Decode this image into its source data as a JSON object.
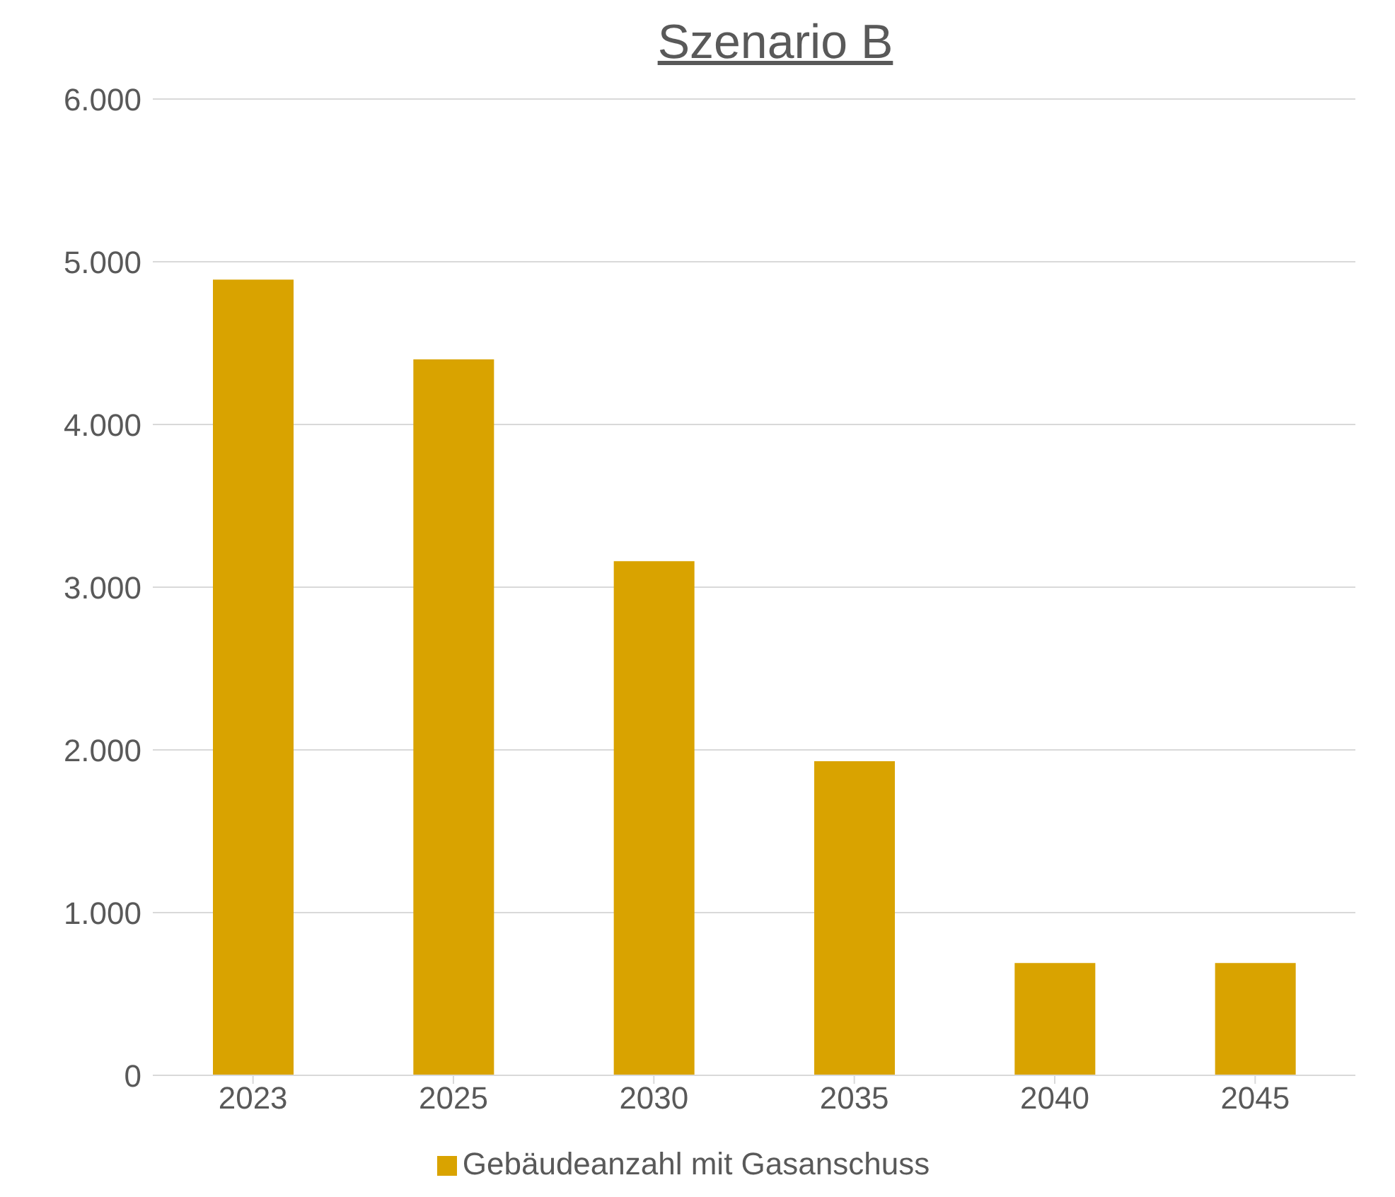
{
  "chart_data": {
    "type": "bar",
    "title": "Szenario B",
    "categories": [
      "2023",
      "2025",
      "2030",
      "2035",
      "2040",
      "2045"
    ],
    "series": [
      {
        "name": "Gebäudeanzahl mit Gasanschuss",
        "color": "#d9a300",
        "values": [
          4890,
          4400,
          3160,
          1930,
          690,
          690
        ]
      }
    ],
    "ylim": [
      0,
      6000
    ],
    "yticks": [
      {
        "value": 0,
        "label": "0"
      },
      {
        "value": 1000,
        "label": "1.000"
      },
      {
        "value": 2000,
        "label": "2.000"
      },
      {
        "value": 3000,
        "label": "3.000"
      },
      {
        "value": 4000,
        "label": "4.000"
      },
      {
        "value": 5000,
        "label": "5.000"
      },
      {
        "value": 6000,
        "label": "6.000"
      }
    ],
    "grid": "y",
    "legend": "bottom"
  }
}
